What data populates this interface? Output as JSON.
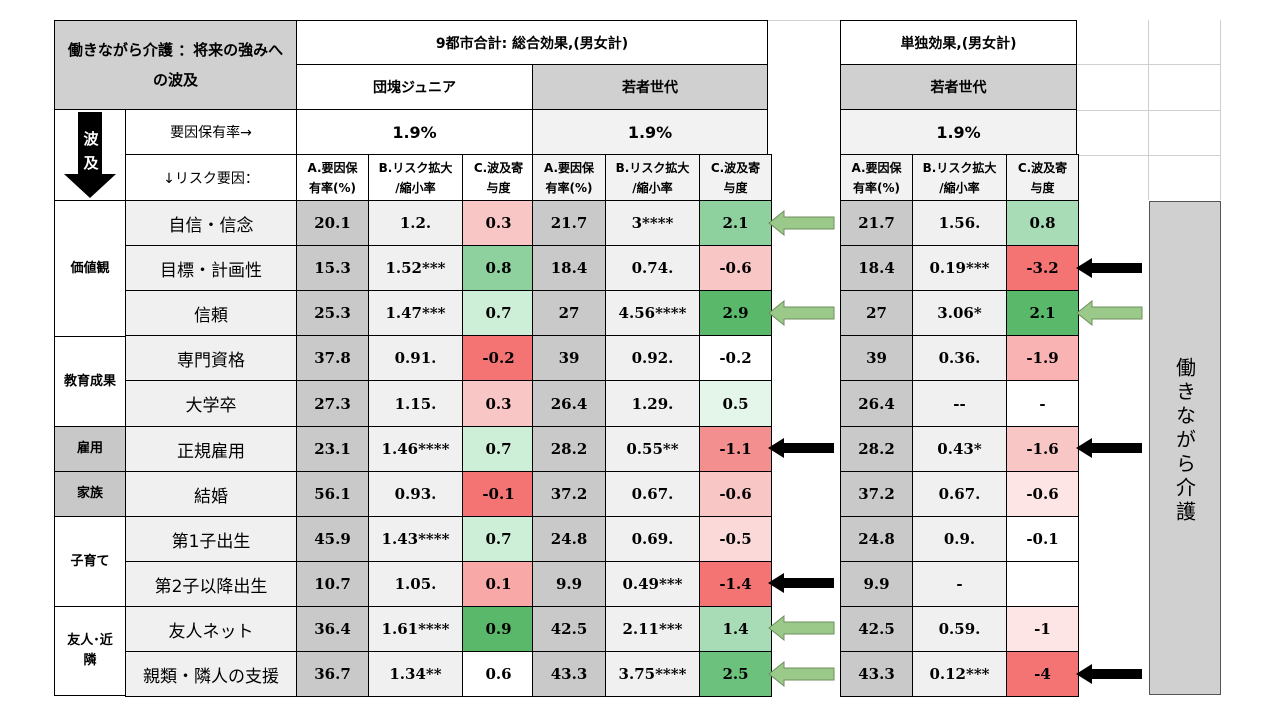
{
  "title": "働きながら介護 ：将来の強みへの波及",
  "headers": {
    "total_effect": "9都市合計: 総合効果,(男女計)",
    "single_effect": "単独効果,(男女計)",
    "dankai_junior": "団塊ジュニア",
    "young_gen": "若者世代",
    "young_gen_single": "若者世代"
  },
  "wave_label_1": "波",
  "wave_label_2": "及",
  "factor_rate_label": "要因保有率→",
  "risk_factor_label": "↓リスク要因：",
  "rates": {
    "dankai": "1.9%",
    "young": "1.9%",
    "single": "1.9%"
  },
  "column_headers": {
    "a1": "A.要因保",
    "a2": "有率(%)",
    "b1": "B.リスク拡大",
    "b2": "/縮小率",
    "c1": "C.波及寄",
    "c2": "与度"
  },
  "categories": {
    "values": "価値観",
    "education": "教育成果",
    "employment": "雇用",
    "family": "家族",
    "childcare": "子育て",
    "friends_1": "友人･近",
    "friends_2": "隣"
  },
  "sidebar_text": "働きながら介護",
  "rows": [
    {
      "factor": "自信・信念",
      "a1": "20.1",
      "b1": "1.2.",
      "c1": "0.3",
      "a2": "21.7",
      "b2": "3****",
      "c2": "2.1",
      "a3": "21.7",
      "b3": "1.56.",
      "c3": "0.8"
    },
    {
      "factor": "目標・計画性",
      "a1": "15.3",
      "b1": "1.52***",
      "c1": "0.8",
      "a2": "18.4",
      "b2": "0.74.",
      "c2": "-0.6",
      "a3": "18.4",
      "b3": "0.19***",
      "c3": "-3.2"
    },
    {
      "factor": "信頼",
      "a1": "25.3",
      "b1": "1.47***",
      "c1": "0.7",
      "a2": "27",
      "b2": "4.56****",
      "c2": "2.9",
      "a3": "27",
      "b3": "3.06*",
      "c3": "2.1"
    },
    {
      "factor": "専門資格",
      "a1": "37.8",
      "b1": "0.91.",
      "c1": "-0.2",
      "a2": "39",
      "b2": "0.92.",
      "c2": "-0.2",
      "a3": "39",
      "b3": "0.36.",
      "c3": "-1.9"
    },
    {
      "factor": "大学卒",
      "a1": "27.3",
      "b1": "1.15.",
      "c1": "0.3",
      "a2": "26.4",
      "b2": "1.29.",
      "c2": "0.5",
      "a3": "26.4",
      "b3": "--",
      "c3": "-"
    },
    {
      "factor": "正規雇用",
      "a1": "23.1",
      "b1": "1.46****",
      "c1": "0.7",
      "a2": "28.2",
      "b2": "0.55**",
      "c2": "-1.1",
      "a3": "28.2",
      "b3": "0.43*",
      "c3": "-1.6"
    },
    {
      "factor": "結婚",
      "a1": "56.1",
      "b1": "0.93.",
      "c1": "-0.1",
      "a2": "37.2",
      "b2": "0.67.",
      "c2": "-0.6",
      "a3": "37.2",
      "b3": "0.67.",
      "c3": "-0.6"
    },
    {
      "factor": "第1子出生",
      "a1": "45.9",
      "b1": "1.43****",
      "c1": "0.7",
      "a2": "24.8",
      "b2": "0.69.",
      "c2": "-0.5",
      "a3": "24.8",
      "b3": "0.9.",
      "c3": "-0.1"
    },
    {
      "factor": "第2子以降出生",
      "a1": "10.7",
      "b1": "1.05.",
      "c1": "0.1",
      "a2": "9.9",
      "b2": "0.49***",
      "c2": "-1.4",
      "a3": "9.9",
      "b3": "-",
      "c3": ""
    },
    {
      "factor": "友人ネット",
      "a1": "36.4",
      "b1": "1.61****",
      "c1": "0.9",
      "a2": "42.5",
      "b2": "2.11***",
      "c2": "1.4",
      "a3": "42.5",
      "b3": "0.59.",
      "c3": "-1"
    },
    {
      "factor": "親類・隣人の支援",
      "a1": "36.7",
      "b1": "1.34**",
      "c1": "0.6",
      "a2": "43.3",
      "b2": "3.75****",
      "c2": "2.5",
      "a3": "43.3",
      "b3": "0.12***",
      "c3": "-4"
    }
  ],
  "cell_colors": {
    "c1": [
      "#f9c6c6",
      "#8fd19e",
      "#cdeed7",
      "#f47474",
      "#f9c6c6",
      "#cdeed7",
      "#f47474",
      "#cdeed7",
      "#f9a8a8",
      "#5ab86b",
      "#ffffff"
    ],
    "c2": [
      "#8fd19e",
      "#f9c6c6",
      "#5ab86b",
      "#ffffff",
      "#e4f5e9",
      "#f48f8f",
      "#f9c6c6",
      "#fbd9d9",
      "#f47474",
      "#a8dcb6",
      "#6cc27c"
    ],
    "c3": [
      "#a8dcb6",
      "#f47474",
      "#5ab86b",
      "#f9b3b3",
      "#ffffff",
      "#f9c6c6",
      "#fde5e5",
      "#ffffff",
      "#ffffff",
      "#fde5e5",
      "#f47474"
    ]
  },
  "arrows": {
    "green_color": "#9bc98a",
    "black_color": "#000000"
  }
}
